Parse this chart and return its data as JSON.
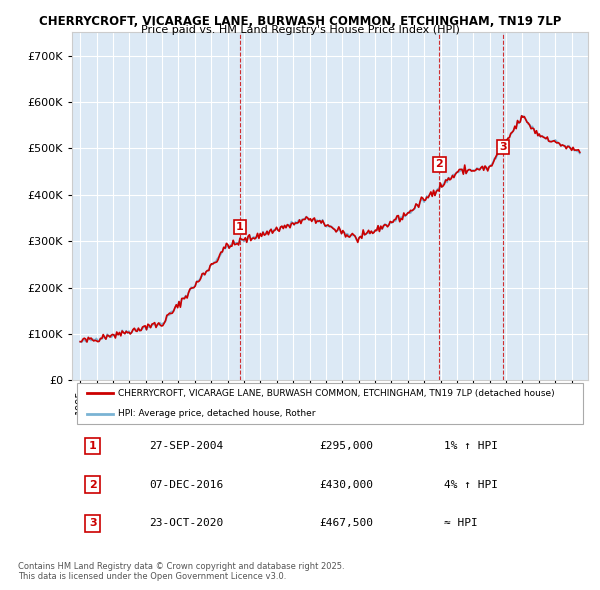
{
  "title_line1": "CHERRYCROFT, VICARAGE LANE, BURWASH COMMON, ETCHINGHAM, TN19 7LP",
  "title_line2": "Price paid vs. HM Land Registry's House Price Index (HPI)",
  "background_color": "#dce9f5",
  "plot_bg_color": "#dce9f5",
  "line_color_hpi": "#7ab3d4",
  "line_color_price": "#cc0000",
  "ylim": [
    0,
    750000
  ],
  "yticks": [
    0,
    100000,
    200000,
    300000,
    400000,
    500000,
    600000,
    700000
  ],
  "ytick_labels": [
    "£0",
    "£100K",
    "£200K",
    "£300K",
    "£400K",
    "£500K",
    "£600K",
    "£700K"
  ],
  "sale_points": [
    {
      "label": "1",
      "date": "27-SEP-2004",
      "price": 295000,
      "note": "1% ↑ HPI",
      "x_year": 2004.74
    },
    {
      "label": "2",
      "date": "07-DEC-2016",
      "price": 430000,
      "note": "4% ↑ HPI",
      "x_year": 2016.93
    },
    {
      "label": "3",
      "date": "23-OCT-2020",
      "price": 467500,
      "note": "≈ HPI",
      "x_year": 2020.81
    }
  ],
  "legend_label_price": "CHERRYCROFT, VICARAGE LANE, BURWASH COMMON, ETCHINGHAM, TN19 7LP (detached house)",
  "legend_label_hpi": "HPI: Average price, detached house, Rother",
  "footer_text": "Contains HM Land Registry data © Crown copyright and database right 2025.\nThis data is licensed under the Open Government Licence v3.0.",
  "xlim_start": 1994.5,
  "xlim_end": 2026.0
}
